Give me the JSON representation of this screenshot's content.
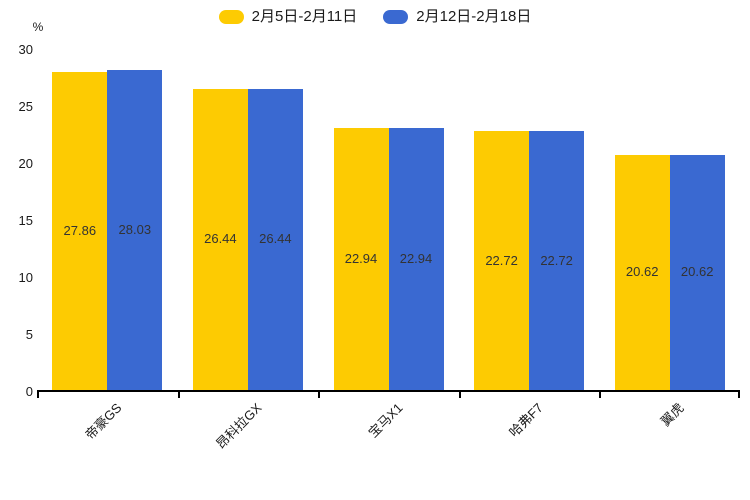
{
  "chart_data": {
    "type": "bar",
    "title": "",
    "ylabel": "%",
    "categories": [
      "帝豪GS",
      "昂科拉GX",
      "宝马X1",
      "哈弗F7",
      "翼虎"
    ],
    "series": [
      {
        "name": "2月5日-2月11日",
        "color": "#FDCB02",
        "values": [
          27.86,
          26.44,
          22.94,
          22.72,
          20.62
        ]
      },
      {
        "name": "2月12日-2月18日",
        "color": "#3A69D1",
        "values": [
          28.03,
          26.44,
          22.94,
          22.72,
          20.62
        ]
      }
    ],
    "ylim": [
      0,
      30
    ],
    "yticks": [
      0,
      5,
      10,
      15,
      20,
      25,
      30
    ],
    "grid": false,
    "legend_position": "top",
    "value_labels": "inside-center",
    "axis_color": "#000000",
    "label_color": "#333333"
  }
}
